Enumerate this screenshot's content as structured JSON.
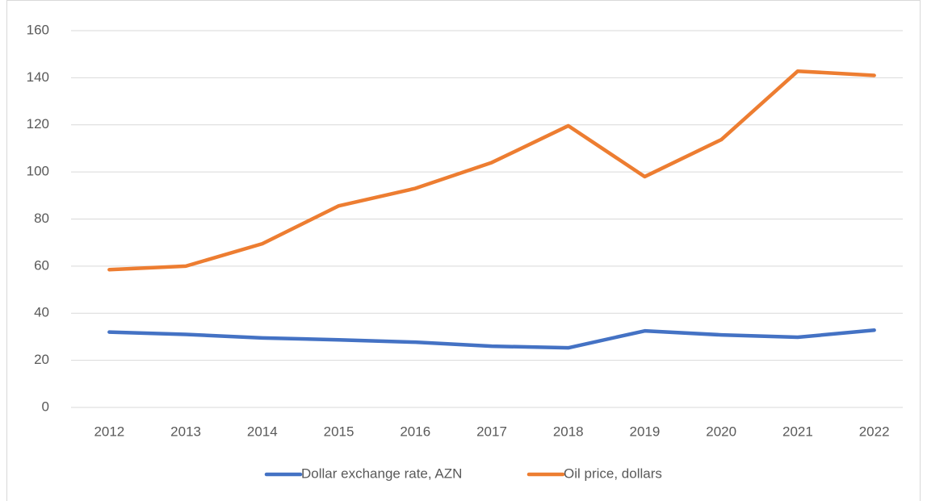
{
  "chart_data": {
    "type": "line",
    "categories": [
      "2012",
      "2013",
      "2014",
      "2015",
      "2016",
      "2017",
      "2018",
      "2019",
      "2020",
      "2021",
      "2022"
    ],
    "series": [
      {
        "name": "Dollar exchange rate, AZN",
        "color": "#4472c4",
        "values": [
          32,
          31,
          29.5,
          28.7,
          27.7,
          26,
          25.3,
          32.5,
          30.8,
          29.8,
          32.8
        ]
      },
      {
        "name": "Oil price, dollars",
        "color": "#ed7d31",
        "values": [
          58.5,
          60,
          69.5,
          85.6,
          93,
          104,
          119.6,
          98,
          113.7,
          142.8,
          141
        ]
      }
    ],
    "ylim": [
      0,
      160
    ],
    "yticks": [
      0,
      20,
      40,
      60,
      80,
      100,
      120,
      140,
      160
    ],
    "grid": true,
    "legend": "bottom"
  }
}
